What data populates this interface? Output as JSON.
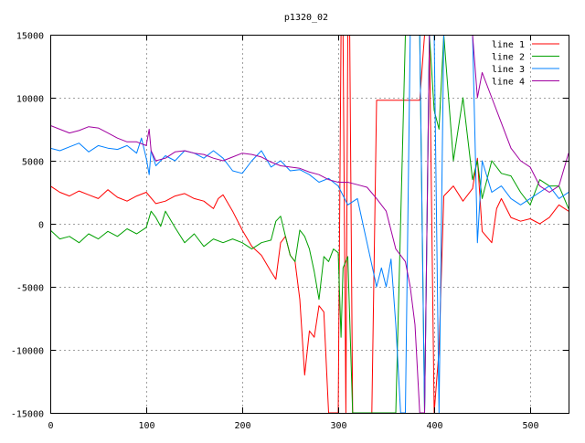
{
  "chart_data": {
    "type": "line",
    "title": "p1320_02",
    "xlabel": "",
    "ylabel": "",
    "xlim": [
      0,
      540
    ],
    "ylim": [
      -15000,
      15000
    ],
    "xticks": [
      0,
      100,
      200,
      300,
      400,
      500
    ],
    "yticks": [
      -15000,
      -10000,
      -5000,
      0,
      5000,
      10000,
      15000
    ],
    "xtick_labels": [
      "0",
      "100",
      "200",
      "300",
      "400",
      "500"
    ],
    "ytick_labels": [
      "-15000",
      "-10000",
      "-5000",
      "0",
      "5000",
      "10000",
      "15000"
    ],
    "grid": true,
    "legend_position": "top-right",
    "series": [
      {
        "name": "line 1",
        "color": "#ff0000",
        "x": [
          0,
          10,
          20,
          30,
          40,
          50,
          60,
          70,
          80,
          90,
          100,
          110,
          120,
          130,
          140,
          150,
          160,
          170,
          175,
          180,
          190,
          200,
          210,
          220,
          230,
          235,
          240,
          245,
          250,
          255,
          260,
          265,
          270,
          275,
          280,
          285,
          290,
          295,
          300,
          303,
          305,
          308,
          310,
          312,
          315,
          320,
          330,
          335,
          340,
          345,
          350,
          360,
          370,
          380,
          385,
          390,
          395,
          400,
          405,
          410,
          420,
          430,
          440,
          445,
          450,
          460,
          465,
          470,
          480,
          490,
          500,
          510,
          520,
          530,
          540
        ],
        "y": [
          3000,
          2500,
          2200,
          2600,
          2300,
          2000,
          2700,
          2100,
          1800,
          2200,
          2500,
          1600,
          1800,
          2200,
          2400,
          2000,
          1800,
          1200,
          2000,
          2300,
          1000,
          -500,
          -1800,
          -2500,
          -3800,
          -4400,
          -1500,
          -1000,
          -2500,
          -3000,
          -6000,
          -12000,
          -8500,
          -9000,
          -6500,
          -7000,
          -15000,
          -15000,
          -15000,
          15000,
          15000,
          -15000,
          15000,
          15000,
          -15000,
          -15000,
          -15000,
          -15000,
          9800,
          9800,
          9800,
          9800,
          9800,
          9800,
          9800,
          15000,
          15000,
          -15000,
          -10000,
          2200,
          3000,
          1800,
          2800,
          5200,
          -600,
          -1500,
          1200,
          2000,
          500,
          200,
          400,
          0,
          500,
          1500,
          1000
        ]
      },
      {
        "name": "line 2",
        "color": "#00a000",
        "x": [
          0,
          10,
          20,
          30,
          40,
          50,
          60,
          70,
          80,
          90,
          100,
          105,
          110,
          115,
          120,
          130,
          140,
          150,
          160,
          170,
          180,
          190,
          200,
          210,
          220,
          230,
          235,
          240,
          245,
          250,
          255,
          260,
          265,
          270,
          275,
          280,
          285,
          290,
          295,
          300,
          303,
          305,
          310,
          315,
          320,
          330,
          335,
          340,
          345,
          350,
          360,
          370,
          380,
          385,
          390,
          395,
          400,
          405,
          410,
          420,
          430,
          440,
          445,
          450,
          460,
          470,
          480,
          490,
          500,
          510,
          520,
          530,
          540
        ],
        "y": [
          -500,
          -1200,
          -1000,
          -1500,
          -800,
          -1200,
          -600,
          -1000,
          -400,
          -800,
          -300,
          1000,
          500,
          -200,
          1000,
          -300,
          -1500,
          -800,
          -1800,
          -1200,
          -1500,
          -1200,
          -1500,
          -2000,
          -1500,
          -1300,
          200,
          600,
          -1000,
          -2500,
          -3000,
          -500,
          -1000,
          -2000,
          -3800,
          -6000,
          -2600,
          -3000,
          -2000,
          -2300,
          -9000,
          -3500,
          -2600,
          -15000,
          -15000,
          -15000,
          -15000,
          -15000,
          -15000,
          -15000,
          -15000,
          15000,
          15000,
          15000,
          -15000,
          15000,
          9000,
          7500,
          15000,
          5000,
          10000,
          3500,
          5000,
          2000,
          5000,
          4000,
          3800,
          2500,
          1500,
          3500,
          3000,
          3000,
          1200
        ]
      },
      {
        "name": "line 3",
        "color": "#0080ff",
        "x": [
          0,
          10,
          20,
          30,
          40,
          50,
          60,
          70,
          80,
          90,
          95,
          100,
          103,
          105,
          110,
          120,
          130,
          140,
          150,
          160,
          170,
          180,
          190,
          200,
          210,
          220,
          230,
          240,
          250,
          260,
          270,
          280,
          290,
          300,
          310,
          320,
          330,
          340,
          345,
          350,
          355,
          360,
          365,
          370,
          375,
          380,
          385,
          390,
          395,
          400,
          405,
          410,
          420,
          430,
          435,
          440,
          445,
          450,
          460,
          470,
          480,
          490,
          500,
          510,
          520,
          530,
          540
        ],
        "y": [
          6000,
          5800,
          6100,
          6400,
          5700,
          6200,
          6000,
          5900,
          6200,
          5600,
          6800,
          5200,
          3900,
          5800,
          4600,
          5400,
          5000,
          5800,
          5600,
          5200,
          5800,
          5200,
          4200,
          4000,
          5000,
          5800,
          4500,
          5000,
          4200,
          4300,
          3900,
          3300,
          3600,
          3000,
          1500,
          2000,
          -1500,
          -5000,
          -3500,
          -5000,
          -2800,
          -8000,
          -15000,
          -15000,
          15000,
          15000,
          15000,
          -15000,
          15000,
          15000,
          -15000,
          15000,
          15000,
          15000,
          15000,
          15000,
          -1500,
          5000,
          2500,
          3000,
          2000,
          1500,
          2000,
          2500,
          3000,
          2000,
          2500
        ]
      },
      {
        "name": "line 4",
        "color": "#a000a0",
        "x": [
          0,
          10,
          20,
          30,
          40,
          50,
          60,
          70,
          80,
          90,
          100,
          103,
          105,
          110,
          120,
          130,
          140,
          150,
          160,
          170,
          180,
          190,
          200,
          210,
          220,
          230,
          240,
          250,
          260,
          270,
          280,
          290,
          300,
          310,
          320,
          330,
          340,
          350,
          360,
          370,
          375,
          380,
          385,
          390,
          395,
          400,
          405,
          410,
          420,
          430,
          435,
          440,
          445,
          450,
          460,
          470,
          480,
          490,
          500,
          510,
          520,
          530,
          540
        ],
        "y": [
          7800,
          7500,
          7200,
          7400,
          7700,
          7600,
          7200,
          6800,
          6500,
          6500,
          6200,
          7500,
          5800,
          5000,
          5200,
          5700,
          5800,
          5600,
          5500,
          5200,
          5000,
          5300,
          5600,
          5500,
          5300,
          4900,
          4600,
          4500,
          4400,
          4100,
          3900,
          3500,
          3300,
          3300,
          3100,
          2900,
          2000,
          1000,
          -2000,
          -3000,
          -5000,
          -8000,
          -15000,
          -15000,
          15000,
          15000,
          15000,
          15000,
          15000,
          15000,
          15000,
          15000,
          10000,
          12000,
          10000,
          8000,
          6000,
          5000,
          4500,
          3000,
          2500,
          3000,
          5600
        ]
      }
    ]
  }
}
